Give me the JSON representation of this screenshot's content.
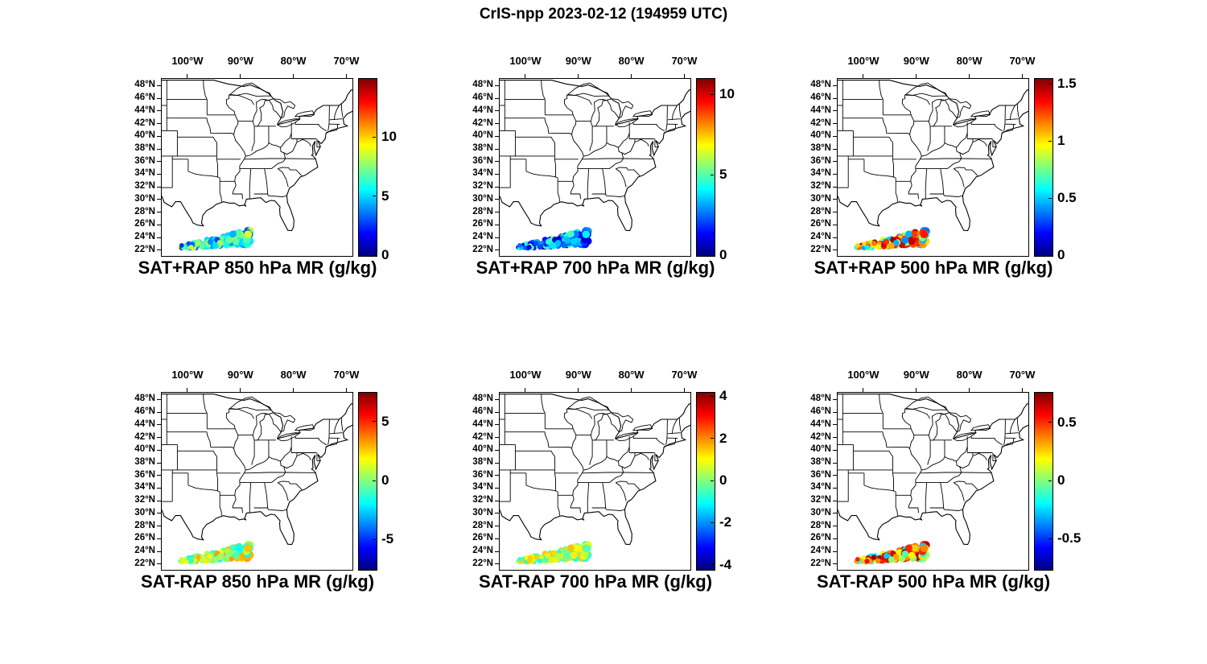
{
  "figure_title": "CrIS-npp 2023-02-12 (194959 UTC)",
  "colors": {
    "background": "#ffffff",
    "axis_line": "#000000",
    "text": "#000000",
    "colormap": "jet"
  },
  "axes": {
    "lon_tick_values": [
      100,
      90,
      80,
      70
    ],
    "lon_tick_labels": [
      "100°W",
      "90°W",
      "80°W",
      "70°W"
    ],
    "lat_tick_values": [
      48,
      46,
      44,
      42,
      40,
      38,
      36,
      34,
      32,
      30,
      28,
      26,
      24,
      22
    ],
    "lat_tick_labels": [
      "48°N",
      "46°N",
      "44°N",
      "42°N",
      "40°N",
      "38°N",
      "36°N",
      "34°N",
      "32°N",
      "30°N",
      "28°N",
      "26°N",
      "24°N",
      "22°N"
    ],
    "map_lon_west_range": [
      105,
      69
    ],
    "map_lat_north_range": [
      21.2,
      49.2
    ]
  },
  "chart_data": {
    "type": "scatter",
    "layout": "2 rows x 3 columns of geographic scatter panels over a US state-outline map, each with a vertical jet colorbar",
    "colormap": "jet",
    "swath_region": {
      "description": "satellite scan swath of colored dots over the Gulf of Mexico, widening and thickening toward the east",
      "lon_west": [
        101.3,
        88.5
      ],
      "lat_north": [
        22.0,
        25.0
      ]
    },
    "panels": [
      {
        "title": "SAT+RAP 850 hPa MR (g/kg)",
        "row": 0,
        "col": 0,
        "colorbar": {
          "min": 0,
          "max": 15,
          "ticks": [
            0,
            5,
            10
          ],
          "tick_labels": [
            "0",
            "5",
            "10"
          ]
        },
        "points": {
          "count": 170,
          "value_range": [
            2.5,
            9.0
          ],
          "bias": 1.0,
          "value_seed": 11
        }
      },
      {
        "title": "SAT+RAP 700 hPa MR (g/kg)",
        "row": 0,
        "col": 1,
        "colorbar": {
          "min": 0,
          "max": 11,
          "ticks": [
            0,
            5,
            10
          ],
          "tick_labels": [
            "0",
            "5",
            "10"
          ]
        },
        "points": {
          "count": 170,
          "value_range": [
            0.8,
            5.5
          ],
          "bias": 1.25,
          "value_seed": 23
        }
      },
      {
        "title": "SAT+RAP 500 hPa MR (g/kg)",
        "row": 0,
        "col": 2,
        "colorbar": {
          "min": 0,
          "max": 1.55,
          "ticks": [
            0,
            0.5,
            1,
            1.5
          ],
          "tick_labels": [
            "0",
            "0.5",
            "1",
            "1.5"
          ]
        },
        "points": {
          "count": 170,
          "value_range": [
            0.35,
            1.5
          ],
          "bias": 0.75,
          "value_seed": 37
        }
      },
      {
        "title": "SAT-RAP 850 hPa MR (g/kg)",
        "row": 1,
        "col": 0,
        "colorbar": {
          "min": -7.5,
          "max": 7.5,
          "ticks": [
            -5,
            0,
            5
          ],
          "tick_labels": [
            "-5",
            "0",
            "5"
          ]
        },
        "points": {
          "count": 170,
          "value_range": [
            -2.0,
            3.5
          ],
          "bias": 1.0,
          "value_seed": 51
        }
      },
      {
        "title": "SAT-RAP 700 hPa MR (g/kg)",
        "row": 1,
        "col": 1,
        "colorbar": {
          "min": -4.2,
          "max": 4.2,
          "ticks": [
            -4,
            -2,
            0,
            2,
            4
          ],
          "tick_labels": [
            "-4",
            "-2",
            "0",
            "2",
            "4"
          ]
        },
        "points": {
          "count": 170,
          "value_range": [
            -0.9,
            1.6
          ],
          "bias": 1.0,
          "value_seed": 67
        }
      },
      {
        "title": "SAT-RAP 500 hPa MR (g/kg)",
        "row": 1,
        "col": 2,
        "colorbar": {
          "min": -0.76,
          "max": 0.76,
          "ticks": [
            -0.5,
            0,
            0.5
          ],
          "tick_labels": [
            "-0.5",
            "0",
            "0.5"
          ]
        },
        "points": {
          "count": 170,
          "value_range": [
            -0.3,
            0.75
          ],
          "bias": 0.85,
          "value_seed": 83
        }
      }
    ]
  }
}
